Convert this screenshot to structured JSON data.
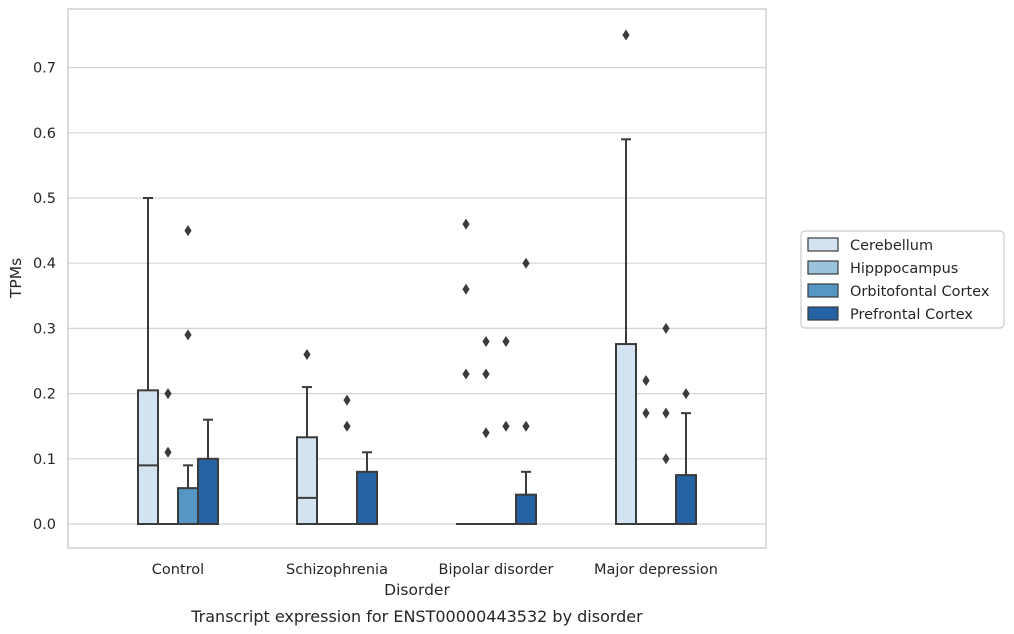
{
  "caption": "Transcript expression for ENST00000443532 by disorder",
  "chart_data": {
    "type": "box",
    "xlabel": "Disorder",
    "ylabel": "TPMs",
    "ylim": [
      -0.036,
      0.79
    ],
    "yticks": [
      0.0,
      0.1,
      0.2,
      0.3,
      0.4,
      0.5,
      0.6,
      0.7
    ],
    "ytick_labels": [
      "0.0",
      "0.1",
      "0.2",
      "0.3",
      "0.4",
      "0.5",
      "0.6",
      "0.7"
    ],
    "grid": true,
    "legend_position": "right",
    "categories": [
      "Control",
      "Schizophrenia",
      "Bipolar disorder",
      "Major depression"
    ],
    "series": [
      {
        "name": "Cerebellum",
        "color": "#d4e3f1",
        "boxes": [
          {
            "q1": 0.0,
            "median": 0.09,
            "q3": 0.205,
            "whisker_low": 0.0,
            "whisker_high": 0.5,
            "outliers": []
          },
          {
            "q1": 0.0,
            "median": 0.04,
            "q3": 0.133,
            "whisker_low": 0.0,
            "whisker_high": 0.21,
            "outliers": [
              0.26
            ]
          },
          {
            "q1": 0.0,
            "median": 0.0,
            "q3": 0.0,
            "whisker_low": 0.0,
            "whisker_high": 0.0,
            "outliers": [
              0.23,
              0.36,
              0.46
            ]
          },
          {
            "q1": 0.0,
            "median": 0.0,
            "q3": 0.276,
            "whisker_low": 0.0,
            "whisker_high": 0.59,
            "outliers": [
              0.75
            ]
          }
        ]
      },
      {
        "name": "Hipppocampus",
        "color": "#9ac3de",
        "boxes": [
          {
            "q1": 0.0,
            "median": 0.0,
            "q3": 0.0,
            "whisker_low": 0.0,
            "whisker_high": 0.0,
            "outliers": [
              0.11,
              0.2
            ]
          },
          {
            "q1": 0.0,
            "median": 0.0,
            "q3": 0.0,
            "whisker_low": 0.0,
            "whisker_high": 0.0,
            "outliers": []
          },
          {
            "q1": 0.0,
            "median": 0.0,
            "q3": 0.0,
            "whisker_low": 0.0,
            "whisker_high": 0.0,
            "outliers": [
              0.14,
              0.23,
              0.28
            ]
          },
          {
            "q1": 0.0,
            "median": 0.0,
            "q3": 0.0,
            "whisker_low": 0.0,
            "whisker_high": 0.0,
            "outliers": [
              0.17,
              0.22
            ]
          }
        ]
      },
      {
        "name": "Orbitofontal Cortex",
        "color": "#5596c5",
        "boxes": [
          {
            "q1": 0.0,
            "median": 0.0,
            "q3": 0.055,
            "whisker_low": 0.0,
            "whisker_high": 0.09,
            "outliers": [
              0.29,
              0.45
            ]
          },
          {
            "q1": 0.0,
            "median": 0.0,
            "q3": 0.0,
            "whisker_low": 0.0,
            "whisker_high": 0.0,
            "outliers": [
              0.15,
              0.19
            ]
          },
          {
            "q1": 0.0,
            "median": 0.0,
            "q3": 0.0,
            "whisker_low": 0.0,
            "whisker_high": 0.0,
            "outliers": [
              0.15,
              0.28
            ]
          },
          {
            "q1": 0.0,
            "median": 0.0,
            "q3": 0.0,
            "whisker_low": 0.0,
            "whisker_high": 0.0,
            "outliers": [
              0.1,
              0.17,
              0.3
            ]
          }
        ]
      },
      {
        "name": "Prefrontal Cortex",
        "color": "#2563a4",
        "boxes": [
          {
            "q1": 0.0,
            "median": 0.0,
            "q3": 0.1,
            "whisker_low": 0.0,
            "whisker_high": 0.16,
            "outliers": []
          },
          {
            "q1": 0.0,
            "median": 0.0,
            "q3": 0.08,
            "whisker_low": 0.0,
            "whisker_high": 0.11,
            "outliers": []
          },
          {
            "q1": 0.0,
            "median": 0.0,
            "q3": 0.045,
            "whisker_low": 0.0,
            "whisker_high": 0.08,
            "outliers": [
              0.15,
              0.4
            ]
          },
          {
            "q1": 0.0,
            "median": 0.0,
            "q3": 0.075,
            "whisker_low": 0.0,
            "whisker_high": 0.17,
            "outliers": [
              0.2
            ]
          }
        ]
      }
    ]
  }
}
